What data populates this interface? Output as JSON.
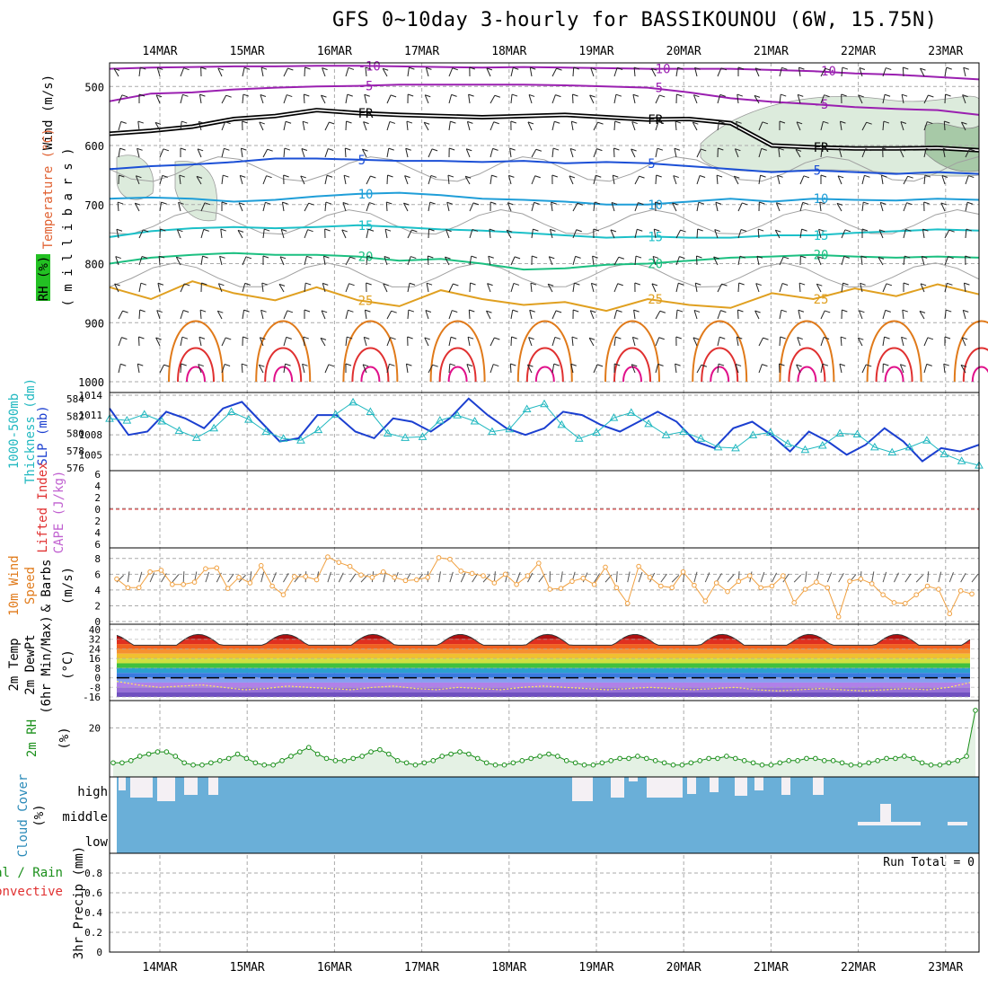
{
  "title": "GFS 0~10day 3-hourly for BASSIKOUNOU (6W, 15.75N)",
  "dates": [
    "14MAR",
    "15MAR",
    "16MAR",
    "17MAR",
    "18MAR",
    "19MAR",
    "20MAR",
    "21MAR",
    "22MAR",
    "23MAR"
  ],
  "colors": {
    "purple": "#9a1fb0",
    "black": "#000000",
    "blue": "#1b4fd6",
    "lightblue": "#1f9ed8",
    "cyan": "#1cc0c8",
    "green": "#1bbf80",
    "yellow": "#e0a020",
    "orange": "#e07a1a",
    "red": "#e03030",
    "magenta": "#e0108a",
    "slp": "#1b3fd0",
    "thick": "#20b8c0",
    "wind": "#f0a040",
    "rh": "#1a8f1a",
    "cloud": "#6aafd8",
    "grid": "#aaaaaa"
  },
  "labels": {
    "p_wind": "Wind (m/s)",
    "p_temp": "Temperature (°C)",
    "p_rh": "RH (%)",
    "p_mb": "( m i l l i b a r s )",
    "thick_title": "1000-500mb",
    "thick_sub": "Thickness (dm)",
    "slp": "SLP (mb)",
    "lifted": "Lifted Index",
    "cape": "CAPE (J/kg)",
    "wind10_a": "10m Wind",
    "wind10_b": "Speed",
    "wind10_c": "& Barbs",
    "wind10_unit": "(m/s)",
    "t2_a": "2m Temp",
    "t2_b": "2m DewPt",
    "t2_c": "(6hr Min/Max)",
    "t2_unit": "(°C)",
    "rh2_a": "2m RH",
    "rh2_unit": "(%)",
    "cloud_a": "Cloud Cover",
    "cloud_unit": "(%)",
    "precip_a": "Total / Rain",
    "precip_b": "Convective",
    "precip_c": "3hr Precip (mm)",
    "run_total": "Run Total = 0"
  },
  "cloud_levels": [
    "high",
    "middle",
    "low"
  ],
  "chart_data": [
    {
      "type": "contour",
      "name": "pressure-levels",
      "ylabel": "millibars",
      "y_ticks": [
        500,
        600,
        700,
        800,
        900,
        1000
      ],
      "ylim": [
        460,
        1000
      ],
      "isotherm_labels": [
        "-10",
        "-5",
        "FR",
        "5",
        "10",
        "15",
        "20",
        "25"
      ],
      "isotherms": [
        {
          "label": "-10",
          "color": "purple",
          "p": [
            470,
            468,
            467,
            466,
            466,
            465,
            465,
            466,
            467,
            468,
            467,
            468,
            469,
            470,
            470,
            470,
            472,
            474,
            478,
            480,
            484,
            488
          ]
        },
        {
          "label": "-5",
          "color": "purple",
          "p": [
            525,
            512,
            510,
            505,
            502,
            500,
            499,
            497,
            497,
            497,
            497,
            498,
            500,
            502,
            510,
            520,
            526,
            530,
            535,
            538,
            540,
            548
          ]
        },
        {
          "label": "FR",
          "color": "black",
          "p": [
            580,
            575,
            568,
            555,
            550,
            540,
            545,
            548,
            550,
            552,
            550,
            548,
            552,
            556,
            555,
            562,
            600,
            603,
            605,
            605,
            604,
            608
          ]
        },
        {
          "label": "5",
          "color": "blue",
          "p": [
            640,
            635,
            632,
            628,
            622,
            622,
            624,
            626,
            626,
            628,
            626,
            630,
            628,
            630,
            635,
            640,
            645,
            642,
            645,
            648,
            645,
            648
          ]
        },
        {
          "label": "10",
          "color": "lightblue",
          "p": [
            690,
            688,
            690,
            695,
            692,
            686,
            682,
            680,
            684,
            690,
            692,
            695,
            700,
            700,
            695,
            690,
            695,
            690,
            692,
            693,
            690,
            692
          ]
        },
        {
          "label": "15",
          "color": "cyan",
          "p": [
            755,
            745,
            740,
            738,
            740,
            738,
            735,
            738,
            742,
            744,
            748,
            752,
            756,
            754,
            756,
            756,
            752,
            752,
            748,
            745,
            742,
            744
          ]
        },
        {
          "label": "20",
          "color": "green",
          "p": [
            800,
            790,
            785,
            782,
            785,
            785,
            788,
            795,
            792,
            800,
            810,
            808,
            802,
            800,
            795,
            790,
            788,
            785,
            788,
            790,
            788,
            790
          ]
        },
        {
          "label": "25",
          "color": "yellow",
          "p": [
            840,
            860,
            830,
            850,
            862,
            840,
            862,
            872,
            845,
            860,
            870,
            865,
            880,
            860,
            870,
            875,
            850,
            860,
            842,
            855,
            835,
            852
          ]
        }
      ],
      "hot_contours": {
        "colors": [
          "orange",
          "red",
          "magenta"
        ]
      }
    },
    {
      "type": "line",
      "name": "thickness-slp",
      "x_steps": 41,
      "thick_ylim": [
        576,
        584
      ],
      "thick_ticks": [
        576,
        578,
        580,
        582,
        584
      ],
      "slp_ylim": [
        1003,
        1014
      ],
      "slp_ticks": [
        1005,
        1008,
        1011,
        1014
      ],
      "series": [
        {
          "name": "SLP (mb)",
          "color": "slp",
          "values": [
            1012,
            1008,
            1008.5,
            1011.5,
            1010.5,
            1009,
            1012,
            1013,
            1010,
            1007,
            1007.5,
            1011,
            1011,
            1008.5,
            1007.5,
            1010.5,
            1010,
            1008.5,
            1010.5,
            1013.5,
            1011,
            1009,
            1008,
            1009,
            1011.5,
            1011,
            1009.5,
            1008.5,
            1010,
            1011.5,
            1010,
            1007,
            1006,
            1009,
            1010,
            1008,
            1005.5,
            1008.5,
            1007,
            1005,
            1006.5,
            1009,
            1007,
            1004,
            1006,
            1005.5,
            1006.5
          ]
        },
        {
          "name": "Thickness (dm)",
          "color": "thick",
          "values": [
            581.7,
            581.5,
            582.2,
            581.4,
            580.3,
            579.5,
            580.6,
            582.5,
            581.6,
            580.2,
            579.4,
            579.2,
            580.4,
            582.2,
            583.6,
            582.5,
            580,
            579.5,
            579.6,
            581.5,
            582.1,
            581.4,
            580.2,
            580.5,
            582.8,
            583.4,
            581,
            579.4,
            580.1,
            581.8,
            582.4,
            581.1,
            579.8,
            580.2,
            579.4,
            578.4,
            578.3,
            579.8,
            580.1,
            578.8,
            578.1,
            578.6,
            580,
            579.9,
            578.4,
            577.8,
            578.4,
            579.2,
            577.6,
            576.8,
            576.3
          ]
        }
      ]
    },
    {
      "type": "line",
      "name": "lifted-cape",
      "ylim": [
        -6,
        6
      ],
      "y_ticks": [
        -6,
        -4,
        -2,
        0,
        2,
        4,
        6
      ],
      "tick_labels": [
        "6",
        "4",
        "2",
        "0",
        "2",
        "4",
        "6"
      ],
      "reference": 0
    },
    {
      "type": "line",
      "name": "wind10",
      "ylim": [
        0,
        9
      ],
      "y_ticks": [
        0,
        2,
        4,
        6,
        8
      ],
      "values": [
        5.4,
        4.3,
        4.3,
        6.3,
        6.5,
        4.7,
        4.7,
        5,
        6.7,
        6.8,
        4.2,
        5.6,
        4.9,
        7.1,
        4.5,
        3.4,
        5.7,
        5.7,
        5.3,
        8.2,
        7.5,
        7,
        5.9,
        5.6,
        6.3,
        5.6,
        5.2,
        5.3,
        5.6,
        8.1,
        7.9,
        6.4,
        6.1,
        5.8,
        4.9,
        6,
        4.7,
        5.8,
        7.4,
        4.1,
        4.2,
        5.1,
        5.5,
        4.7,
        6.9,
        4.3,
        2.3,
        7,
        5.6,
        4.5,
        4.3,
        6.3,
        4.6,
        2.6,
        4.9,
        3.8,
        5.1,
        5.8,
        4.3,
        4.5,
        5.8,
        2.4,
        4.1,
        5,
        4.3,
        0.6,
        5.1,
        5.4,
        4.8,
        3.4,
        2.4,
        2.3,
        3.4,
        4.5,
        4.1,
        1,
        3.9,
        3.5
      ]
    },
    {
      "type": "area",
      "name": "temp2m",
      "ylim": [
        -16,
        40
      ],
      "y_ticks": [
        40,
        32,
        24,
        16,
        8,
        0,
        -8,
        -16
      ],
      "dewpoint": [
        -3,
        -6,
        -8,
        -7,
        -6,
        -8,
        -10,
        -9,
        -7,
        -8,
        -9,
        -10,
        -8,
        -7,
        -9,
        -10,
        -8,
        -9,
        -10,
        -8,
        -7,
        -8,
        -9,
        -10,
        -9,
        -8,
        -9,
        -10,
        -9,
        -8,
        -10,
        -11,
        -10,
        -9,
        -10,
        -11,
        -10,
        -9,
        -10,
        -8,
        -4
      ]
    },
    {
      "type": "area",
      "name": "rh2m",
      "ylim": [
        0,
        30
      ],
      "y_ticks": [
        20
      ],
      "values": [
        4,
        4,
        5,
        7,
        8,
        9,
        9,
        7,
        4,
        3,
        3,
        4,
        5,
        6,
        8,
        6,
        4,
        3,
        3,
        5,
        7,
        9,
        11,
        8,
        6,
        5,
        5,
        6,
        7,
        9,
        10,
        8,
        5,
        4,
        3,
        4,
        5,
        7,
        8,
        9,
        8,
        6,
        4,
        3,
        3,
        4,
        5,
        6,
        7,
        8,
        7,
        5,
        4,
        3,
        3,
        4,
        5,
        6,
        6,
        7,
        6,
        5,
        4,
        3,
        3,
        4,
        5,
        6,
        6,
        7,
        6,
        5,
        4,
        3,
        3,
        4,
        5,
        5,
        6,
        6,
        5,
        5,
        4,
        3,
        3,
        4,
        5,
        6,
        6,
        7,
        6,
        4,
        3,
        3,
        4,
        5,
        7,
        28
      ]
    },
    {
      "type": "bar",
      "name": "cloud-cover",
      "categories": [
        "high",
        "middle",
        "low"
      ]
    },
    {
      "type": "bar",
      "name": "precip3hr",
      "ylim": [
        0,
        1
      ],
      "y_ticks": [
        0,
        0.2,
        0.4,
        0.6,
        0.8
      ],
      "tick_labels": [
        "0",
        "0.2",
        "0.4",
        "0.6",
        "0.8"
      ],
      "values": []
    }
  ]
}
